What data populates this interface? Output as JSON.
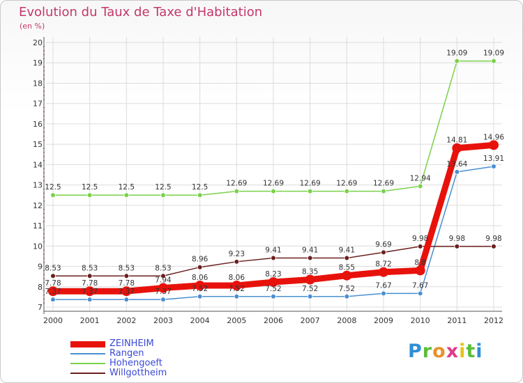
{
  "header": {
    "title": "Evolution du Taux de Taxe d'Habitation",
    "subtitle": "(en %)"
  },
  "logo": {
    "letters": [
      "P",
      "r",
      "o",
      "x",
      "i",
      "t",
      "i"
    ],
    "colors": [
      "#2f8fd6",
      "#5bbd3a",
      "#e8912a",
      "#e03a8a",
      "#e8c21a",
      "#5bbd3a",
      "#2f8fd6"
    ]
  },
  "chart_data": {
    "type": "line",
    "title": "Evolution du Taux de Taxe d'Habitation",
    "subtitle": "(en %)",
    "xlabel": "",
    "ylabel": "",
    "x": [
      "2000",
      "2001",
      "2002",
      "2003",
      "2004",
      "2005",
      "2006",
      "2007",
      "2008",
      "2009",
      "2010",
      "2011",
      "2012"
    ],
    "ylim": [
      7,
      20
    ],
    "yticks": [
      "7",
      "8",
      "9",
      "10",
      "11",
      "12",
      "13",
      "14",
      "15",
      "16",
      "17",
      "18",
      "19",
      "20"
    ],
    "grid": true,
    "legend_position": "bottom-left",
    "series": [
      {
        "name": "ZEINHEIM",
        "color": "#e8120c",
        "style": "thick",
        "values": [
          7.78,
          7.78,
          7.78,
          7.94,
          8.06,
          8.06,
          8.23,
          8.35,
          8.55,
          8.72,
          8.8,
          14.81,
          14.96
        ],
        "labels": [
          "7.78",
          "7.78",
          "7.78",
          "7.94",
          "8.06",
          "8.06",
          "8.23",
          "8.35",
          "8.55",
          "8.72",
          "8.8",
          "14.81",
          "14.96"
        ]
      },
      {
        "name": "Rangen",
        "color": "#4a8fd0",
        "style": "thin",
        "values": [
          7.37,
          7.37,
          7.37,
          7.37,
          7.52,
          7.52,
          7.52,
          7.52,
          7.52,
          7.67,
          7.67,
          13.64,
          13.91
        ],
        "labels": [
          "7.37",
          "7.37",
          "7.37",
          "7.37",
          "7.52",
          "7.52",
          "7.52",
          "7.52",
          "7.52",
          "7.67",
          "7.67",
          "13.64",
          "13.91"
        ]
      },
      {
        "name": "Hohengoeft",
        "color": "#7ad14a",
        "style": "thin",
        "values": [
          12.5,
          12.5,
          12.5,
          12.5,
          12.5,
          12.69,
          12.69,
          12.69,
          12.69,
          12.69,
          12.94,
          19.09,
          19.09
        ],
        "labels": [
          "12.5",
          "12.5",
          "12.5",
          "12.5",
          "12.5",
          "12.69",
          "12.69",
          "12.69",
          "12.69",
          "12.69",
          "12.94",
          "19.09",
          "19.09"
        ]
      },
      {
        "name": "Willgottheim",
        "color": "#6b1f1f",
        "style": "thin",
        "values": [
          8.53,
          8.53,
          8.53,
          8.53,
          8.96,
          9.23,
          9.41,
          9.41,
          9.41,
          9.69,
          9.98,
          9.98,
          9.98
        ],
        "labels": [
          "8.53",
          "8.53",
          "8.53",
          "8.53",
          "8.96",
          "9.23",
          "9.41",
          "9.41",
          "9.41",
          "9.69",
          "9.98",
          "9.98",
          "9.98"
        ]
      }
    ]
  }
}
